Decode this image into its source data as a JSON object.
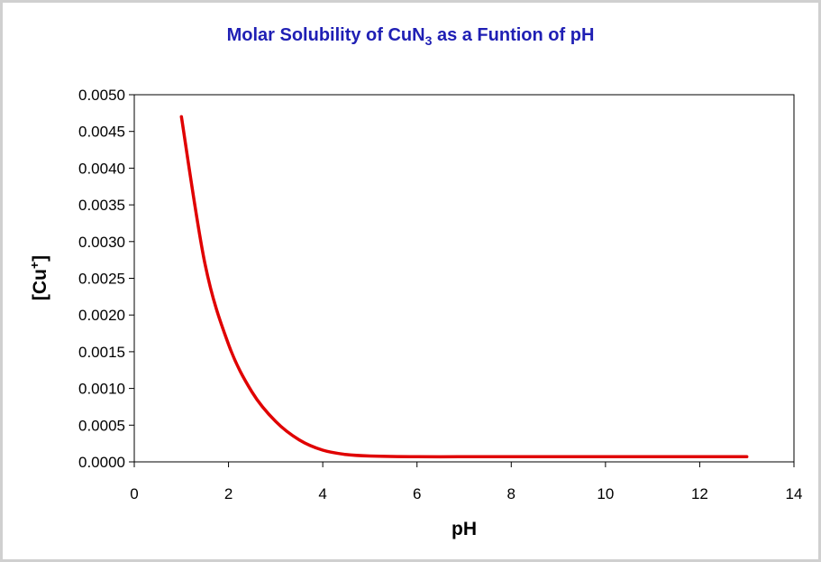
{
  "chart_data": {
    "type": "line",
    "title": {
      "prefix": "Molar Solubility of CuN",
      "subscript": "3",
      "suffix": " as a Funtion of pH"
    },
    "xlabel": "pH",
    "ylabel": {
      "main": "[Cu",
      "superscript": "+",
      "close": "]"
    },
    "xlim": [
      0,
      14
    ],
    "ylim": [
      0,
      0.005
    ],
    "xticks": [
      "0",
      "2",
      "4",
      "6",
      "8",
      "10",
      "12",
      "14"
    ],
    "yticks": [
      "0.0000",
      "0.0005",
      "0.0010",
      "0.0015",
      "0.0020",
      "0.0025",
      "0.0030",
      "0.0035",
      "0.0040",
      "0.0045",
      "0.0050"
    ],
    "grid": false,
    "legend": "none",
    "series": [
      {
        "color": "#e00000",
        "x": [
          1,
          1.5,
          2,
          2.5,
          3,
          3.5,
          4,
          4.5,
          5,
          6,
          7,
          8,
          9,
          10,
          11,
          12,
          13
        ],
        "y": [
          0.0047,
          0.0027,
          0.0016,
          0.00095,
          0.00055,
          0.0003,
          0.00016,
          0.0001,
          8e-05,
          7e-05,
          7e-05,
          7e-05,
          7e-05,
          7e-05,
          7e-05,
          7e-05,
          7e-05
        ]
      }
    ]
  }
}
